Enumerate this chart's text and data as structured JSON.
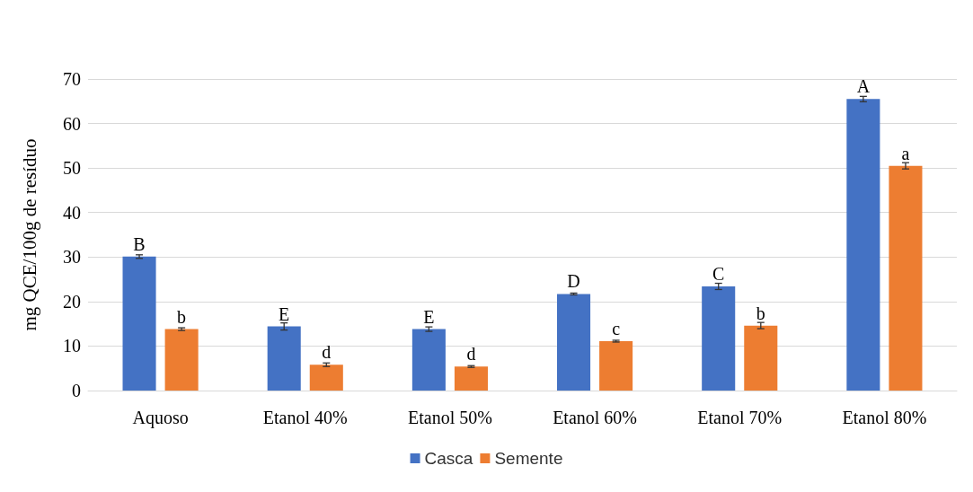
{
  "chart_data": {
    "type": "bar",
    "ylabel": "mg QCE/100g de resíduo",
    "categories": [
      "Aquoso",
      "Etanol 40%",
      "Etanol 50%",
      "Etanol 60%",
      "Etanol 70%",
      "Etanol 80%"
    ],
    "series": [
      {
        "name": "Casca",
        "color": "#4472c4",
        "values": [
          30.1,
          14.4,
          13.8,
          21.7,
          23.4,
          65.5
        ],
        "errors": [
          0.4,
          0.8,
          0.5,
          0.2,
          0.7,
          0.6
        ],
        "value_labels": [
          "B",
          "E",
          "E",
          "D",
          "C",
          "A"
        ]
      },
      {
        "name": "Semente",
        "color": "#ed7d31",
        "values": [
          13.8,
          5.8,
          5.4,
          11.1,
          14.6,
          50.5
        ],
        "errors": [
          0.3,
          0.4,
          0.2,
          0.2,
          0.7,
          0.7
        ],
        "value_labels": [
          "b",
          "d",
          "d",
          "c",
          "b",
          "a"
        ]
      }
    ],
    "ylim": [
      0,
      70
    ],
    "yticks": [
      0,
      10,
      20,
      30,
      40,
      50,
      60,
      70
    ],
    "grid": "y",
    "legend": "bottom"
  }
}
